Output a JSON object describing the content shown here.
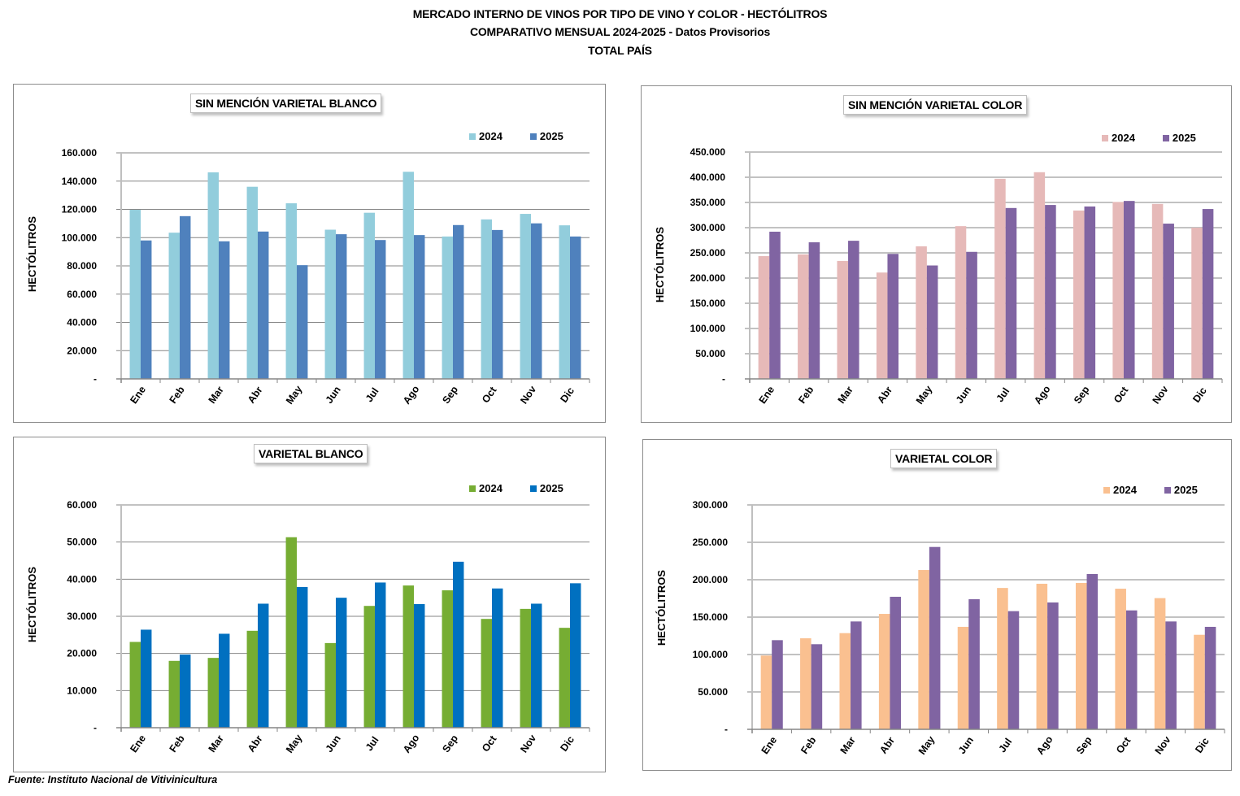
{
  "header": {
    "line1": "MERCADO INTERNO DE VINOS POR TIPO DE VINO Y COLOR -  HECTÓLITROS",
    "line2": "COMPARATIVO MENSUAL 2024-2025 - Datos  Provisorios",
    "line3": "TOTAL PAÍS"
  },
  "footer": "Fuente: Instituto Nacional de Vitivinicultura",
  "chart_data": [
    {
      "type": "bar",
      "title": "SIN MENCIÓN VARIETAL BLANCO",
      "xlabel": "",
      "ylabel": "HECTÓLITROS",
      "ylim": [
        0,
        160000
      ],
      "yticks": [
        0,
        20000,
        40000,
        60000,
        80000,
        100000,
        120000,
        140000,
        160000
      ],
      "ytick_labels": [
        "-",
        "20.000",
        "40.000",
        "60.000",
        "80.000",
        "100.000",
        "120.000",
        "140.000",
        "160.000"
      ],
      "grid": true,
      "legend": "top-right",
      "categories": [
        "Ene",
        "Feb",
        "Mar",
        "Abr",
        "May",
        "Jun",
        "Jul",
        "Ago",
        "Sep",
        "Oct",
        "Nov",
        "Dic"
      ],
      "series": [
        {
          "name": "2024",
          "color": "#92CDDC",
          "values": [
            119700,
            103500,
            146200,
            136000,
            124300,
            105600,
            117600,
            146600,
            100800,
            112900,
            116800,
            108700
          ]
        },
        {
          "name": "2025",
          "color": "#4F81BD",
          "values": [
            98000,
            115200,
            97400,
            104300,
            80500,
            102400,
            98300,
            101800,
            108900,
            105400,
            110100,
            100800
          ]
        }
      ]
    },
    {
      "type": "bar",
      "title": "SIN MENCIÓN VARIETAL COLOR",
      "xlabel": "",
      "ylabel": "HECTÓLITROS",
      "ylim": [
        0,
        450000
      ],
      "yticks": [
        0,
        50000,
        100000,
        150000,
        200000,
        250000,
        300000,
        350000,
        400000,
        450000
      ],
      "ytick_labels": [
        "-",
        "50.000",
        "100.000",
        "150.000",
        "200.000",
        "250.000",
        "300.000",
        "350.000",
        "400.000",
        "450.000"
      ],
      "grid": true,
      "legend": "top-right",
      "categories": [
        "Ene",
        "Feb",
        "Mar",
        "Abr",
        "May",
        "Jun",
        "Jul",
        "Ago",
        "Sep",
        "Oct",
        "Nov",
        "Dic"
      ],
      "series": [
        {
          "name": "2024",
          "color": "#E6B9B8",
          "values": [
            243500,
            247000,
            234000,
            211000,
            263000,
            303000,
            397000,
            410000,
            334000,
            351000,
            347000,
            300000
          ]
        },
        {
          "name": "2025",
          "color": "#8064A2",
          "values": [
            292000,
            271000,
            274000,
            248000,
            225000,
            252000,
            339000,
            345000,
            342000,
            353000,
            308000,
            337000
          ]
        }
      ]
    },
    {
      "type": "bar",
      "title": "VARIETAL BLANCO",
      "xlabel": "",
      "ylabel": "HECTÓLITROS",
      "ylim": [
        0,
        60000
      ],
      "yticks": [
        0,
        10000,
        20000,
        30000,
        40000,
        50000,
        60000
      ],
      "ytick_labels": [
        "-",
        "10.000",
        "20.000",
        "30.000",
        "40.000",
        "50.000",
        "60.000"
      ],
      "grid": true,
      "legend": "top-right",
      "categories": [
        "Ene",
        "Feb",
        "Mar",
        "Abr",
        "May",
        "Jun",
        "Jul",
        "Ago",
        "Sep",
        "Oct",
        "Nov",
        "Dic"
      ],
      "series": [
        {
          "name": "2024",
          "color": "#76AD33",
          "values": [
            23100,
            18000,
            18800,
            26100,
            51300,
            22800,
            32800,
            38300,
            37000,
            29300,
            32000,
            26900
          ]
        },
        {
          "name": "2025",
          "color": "#0070C0",
          "values": [
            26400,
            19700,
            25300,
            33400,
            37900,
            35000,
            39100,
            33300,
            44700,
            37500,
            33400,
            38900
          ]
        }
      ]
    },
    {
      "type": "bar",
      "title": "VARIETAL COLOR",
      "xlabel": "",
      "ylabel": "HECTÓLITROS",
      "ylim": [
        0,
        300000
      ],
      "yticks": [
        0,
        50000,
        100000,
        150000,
        200000,
        250000,
        300000
      ],
      "ytick_labels": [
        "-",
        "50.000",
        "100.000",
        "150.000",
        "200.000",
        "250.000",
        "300.000"
      ],
      "grid": true,
      "legend": "top-right",
      "categories": [
        "Ene",
        "Feb",
        "Mar",
        "Abr",
        "May",
        "Jun",
        "Jul",
        "Ago",
        "Sep",
        "Oct",
        "Nov",
        "Dic"
      ],
      "series": [
        {
          "name": "2024",
          "color": "#FAC090",
          "values": [
            98600,
            121700,
            128600,
            154300,
            213000,
            137000,
            189000,
            194600,
            195700,
            188000,
            175400,
            126400
          ]
        },
        {
          "name": "2025",
          "color": "#8064A2",
          "values": [
            119200,
            113800,
            144200,
            177200,
            243800,
            174000,
            158000,
            169600,
            207600,
            159000,
            144200,
            137000
          ]
        }
      ]
    }
  ]
}
